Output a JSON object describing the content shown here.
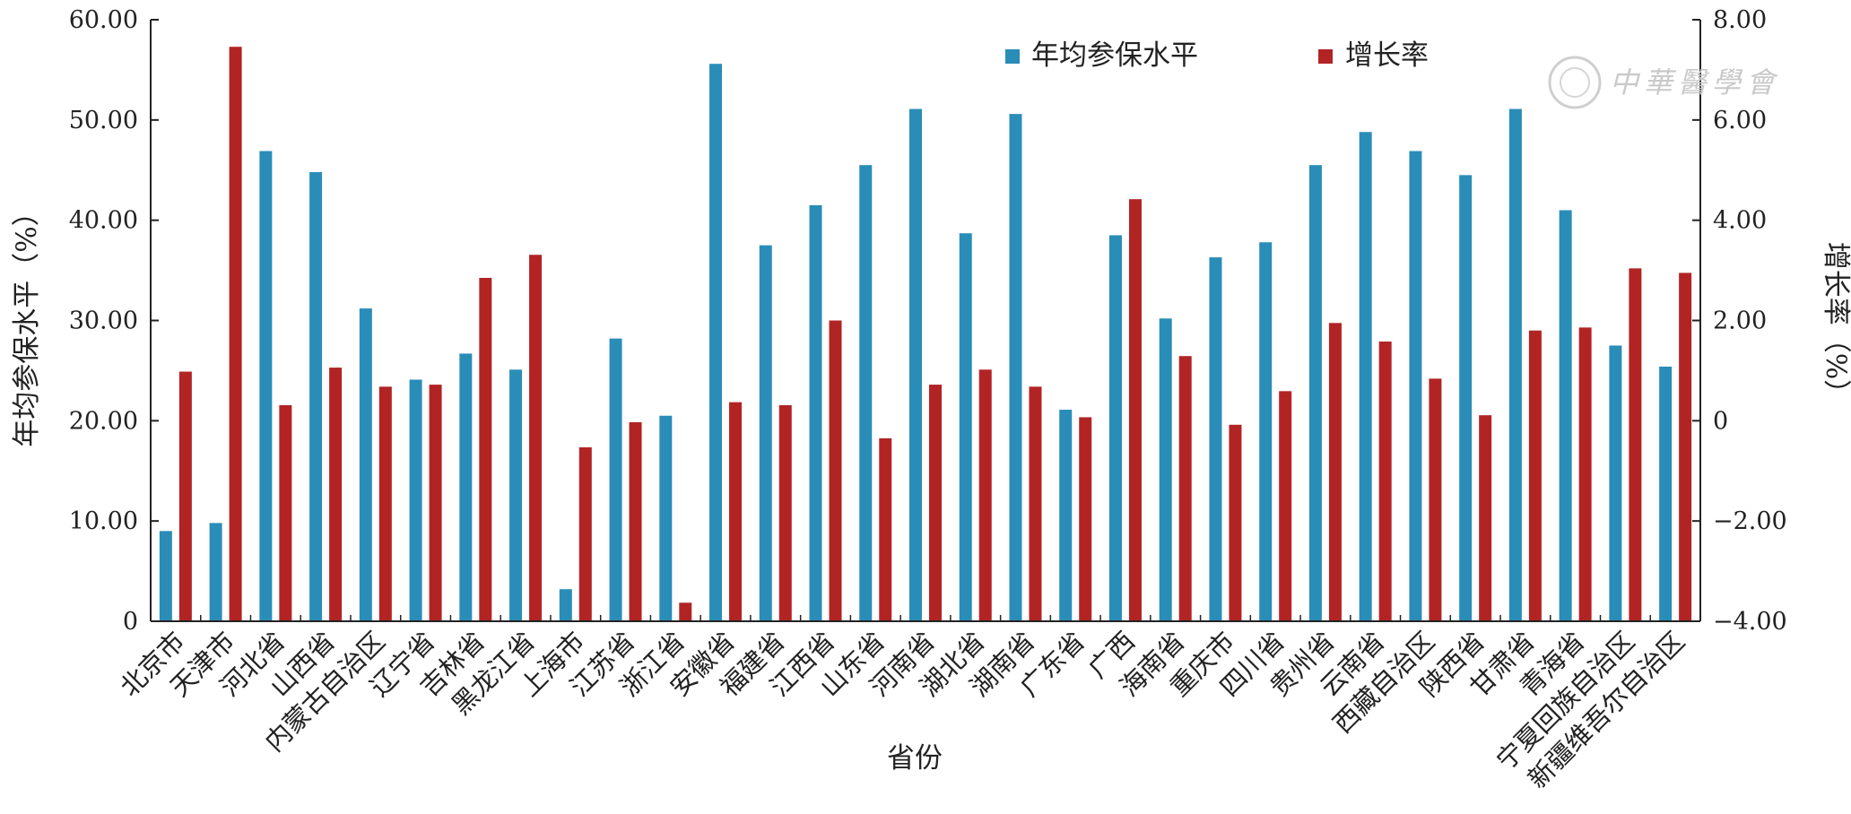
{
  "chart_data": {
    "type": "bar",
    "title": "",
    "xlabel": "省份",
    "ylabel_left": "年均参保水平（%）",
    "ylabel_right": "增长率（%）",
    "ylim_left": [
      0,
      60
    ],
    "ylim_right": [
      -4,
      8
    ],
    "yticks_left": [
      "0",
      "10.00",
      "20.00",
      "30.00",
      "40.00",
      "50.00",
      "60.00"
    ],
    "yticks_right": [
      "−4.00",
      "−2.00",
      "0",
      "2.00",
      "4.00",
      "6.00",
      "8.00"
    ],
    "legend_position": "top-center",
    "grid": false,
    "categories": [
      "北京市",
      "天津市",
      "河北省",
      "山西省",
      "内蒙古自治区",
      "辽宁省",
      "吉林省",
      "黑龙江省",
      "上海市",
      "江苏省",
      "浙江省",
      "安徽省",
      "福建省",
      "江西省",
      "山东省",
      "河南省",
      "湖北省",
      "湖南省",
      "广东省",
      "广西",
      "海南省",
      "重庆市",
      "四川省",
      "贵州省",
      "云南省",
      "西藏自治区",
      "陕西省",
      "甘肃省",
      "青海省",
      "宁夏回族自治区",
      "新疆维吾尔自治区"
    ],
    "series": [
      {
        "name": "年均参保水平",
        "axis": "left",
        "color": "#2a8db8",
        "values": [
          9.0,
          9.8,
          46.9,
          44.8,
          31.2,
          24.1,
          26.7,
          25.1,
          3.2,
          28.2,
          20.5,
          55.6,
          37.5,
          41.5,
          45.5,
          51.1,
          38.7,
          50.6,
          21.1,
          38.5,
          30.2,
          36.3,
          37.8,
          45.5,
          48.8,
          46.9,
          44.5,
          51.1,
          41.0,
          27.5,
          25.4
        ]
      },
      {
        "name": "增长率",
        "axis": "right",
        "color": "#b22424",
        "values": [
          0.98,
          7.46,
          0.31,
          1.06,
          0.68,
          0.72,
          2.85,
          3.31,
          -0.53,
          -0.03,
          -3.63,
          0.37,
          0.31,
          2.0,
          -0.35,
          0.72,
          1.02,
          0.68,
          0.07,
          4.42,
          1.29,
          -0.08,
          0.59,
          1.95,
          1.58,
          0.84,
          0.11,
          1.8,
          1.86,
          3.04,
          2.95
        ]
      }
    ],
    "watermark": "中華醫學會"
  }
}
